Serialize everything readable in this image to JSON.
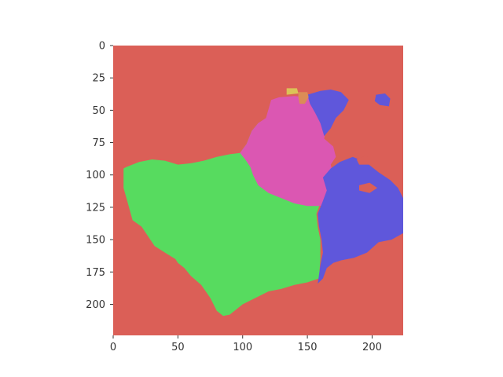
{
  "chart_data": {
    "type": "heatmap",
    "title": "",
    "xlabel": "",
    "ylabel": "",
    "xlim": [
      0,
      224
    ],
    "ylim": [
      224,
      0
    ],
    "x_ticks": [
      0,
      50,
      100,
      150,
      200
    ],
    "y_ticks": [
      0,
      25,
      50,
      75,
      100,
      125,
      150,
      175,
      200
    ],
    "grid": false,
    "legend": "none",
    "background_color": "#db5f57",
    "regions": [
      {
        "color": "#57db5f",
        "polygon": [
          [
            10,
            94
          ],
          [
            20,
            90
          ],
          [
            30,
            88
          ],
          [
            40,
            89
          ],
          [
            50,
            92
          ],
          [
            60,
            91
          ],
          [
            70,
            89
          ],
          [
            80,
            86
          ],
          [
            90,
            84
          ],
          [
            98,
            83
          ],
          [
            103,
            76
          ],
          [
            107,
            66
          ],
          [
            112,
            60
          ],
          [
            118,
            57
          ],
          [
            121,
            62
          ],
          [
            126,
            68
          ],
          [
            131,
            78
          ],
          [
            140,
            90
          ],
          [
            150,
            97
          ],
          [
            158,
            103
          ],
          [
            163,
            110
          ],
          [
            160,
            122
          ],
          [
            157,
            130
          ],
          [
            158,
            140
          ],
          [
            160,
            150
          ],
          [
            160,
            165
          ],
          [
            159,
            180
          ],
          [
            150,
            183
          ],
          [
            140,
            185
          ],
          [
            130,
            188
          ],
          [
            120,
            190
          ],
          [
            110,
            195
          ],
          [
            100,
            200
          ],
          [
            90,
            208
          ],
          [
            85,
            209
          ],
          [
            80,
            205
          ],
          [
            75,
            195
          ],
          [
            68,
            185
          ],
          [
            60,
            178
          ],
          [
            55,
            172
          ],
          [
            50,
            168
          ],
          [
            48,
            165
          ],
          [
            40,
            160
          ],
          [
            32,
            155
          ],
          [
            22,
            140
          ],
          [
            15,
            135
          ],
          [
            8,
            110
          ],
          [
            8,
            95
          ]
        ]
      },
      {
        "color": "#db57b2",
        "polygon": [
          [
            98,
            83
          ],
          [
            103,
            76
          ],
          [
            107,
            66
          ],
          [
            112,
            60
          ],
          [
            118,
            56
          ],
          [
            122,
            42
          ],
          [
            128,
            40
          ],
          [
            140,
            39
          ],
          [
            150,
            40
          ],
          [
            160,
            42
          ],
          [
            164,
            50
          ],
          [
            165,
            60
          ],
          [
            163,
            72
          ],
          [
            170,
            78
          ],
          [
            172,
            86
          ],
          [
            168,
            92
          ],
          [
            170,
            100
          ],
          [
            175,
            108
          ],
          [
            174,
            116
          ],
          [
            168,
            120
          ],
          [
            160,
            124
          ],
          [
            150,
            124
          ],
          [
            140,
            122
          ],
          [
            130,
            118
          ],
          [
            120,
            114
          ],
          [
            112,
            108
          ],
          [
            108,
            100
          ],
          [
            106,
            94
          ],
          [
            102,
            88
          ]
        ]
      },
      {
        "color": "#5f57db",
        "polygon": [
          [
            150,
            38
          ],
          [
            160,
            35
          ],
          [
            168,
            34
          ],
          [
            176,
            36
          ],
          [
            182,
            42
          ],
          [
            178,
            50
          ],
          [
            172,
            56
          ],
          [
            168,
            64
          ],
          [
            163,
            70
          ],
          [
            160,
            60
          ],
          [
            156,
            52
          ],
          [
            152,
            45
          ]
        ]
      },
      {
        "color": "#5f57db",
        "polygon": [
          [
            162,
            102
          ],
          [
            168,
            95
          ],
          [
            175,
            90
          ],
          [
            185,
            86
          ],
          [
            195,
            90
          ],
          [
            205,
            98
          ],
          [
            214,
            104
          ],
          [
            220,
            110
          ],
          [
            224,
            118
          ],
          [
            224,
            145
          ],
          [
            215,
            150
          ],
          [
            205,
            152
          ],
          [
            196,
            160
          ],
          [
            186,
            164
          ],
          [
            176,
            166
          ],
          [
            170,
            168
          ],
          [
            165,
            172
          ],
          [
            162,
            180
          ],
          [
            158,
            184
          ],
          [
            160,
            170
          ],
          [
            162,
            160
          ],
          [
            161,
            150
          ],
          [
            159,
            140
          ],
          [
            158,
            130
          ],
          [
            162,
            120
          ],
          [
            165,
            112
          ]
        ]
      },
      {
        "color": "#db5f57",
        "polygon": [
          [
            188,
            88
          ],
          [
            195,
            85
          ],
          [
            200,
            88
          ],
          [
            198,
            92
          ],
          [
            190,
            92
          ]
        ]
      },
      {
        "color": "#db5f57",
        "polygon": [
          [
            190,
            108
          ],
          [
            198,
            106
          ],
          [
            204,
            110
          ],
          [
            198,
            114
          ],
          [
            190,
            112
          ]
        ]
      },
      {
        "color": "#5f57db",
        "polygon": [
          [
            203,
            38
          ],
          [
            210,
            37
          ],
          [
            214,
            41
          ],
          [
            213,
            47
          ],
          [
            206,
            46
          ],
          [
            202,
            43
          ]
        ]
      },
      {
        "color": "#dbc257",
        "polygon": [
          [
            134,
            33
          ],
          [
            142,
            33
          ],
          [
            143,
            37
          ],
          [
            134,
            38
          ]
        ]
      },
      {
        "color": "#db8c57",
        "polygon": [
          [
            143,
            36
          ],
          [
            150,
            36
          ],
          [
            151,
            40
          ],
          [
            148,
            45
          ],
          [
            144,
            45
          ],
          [
            143,
            40
          ]
        ]
      }
    ]
  }
}
